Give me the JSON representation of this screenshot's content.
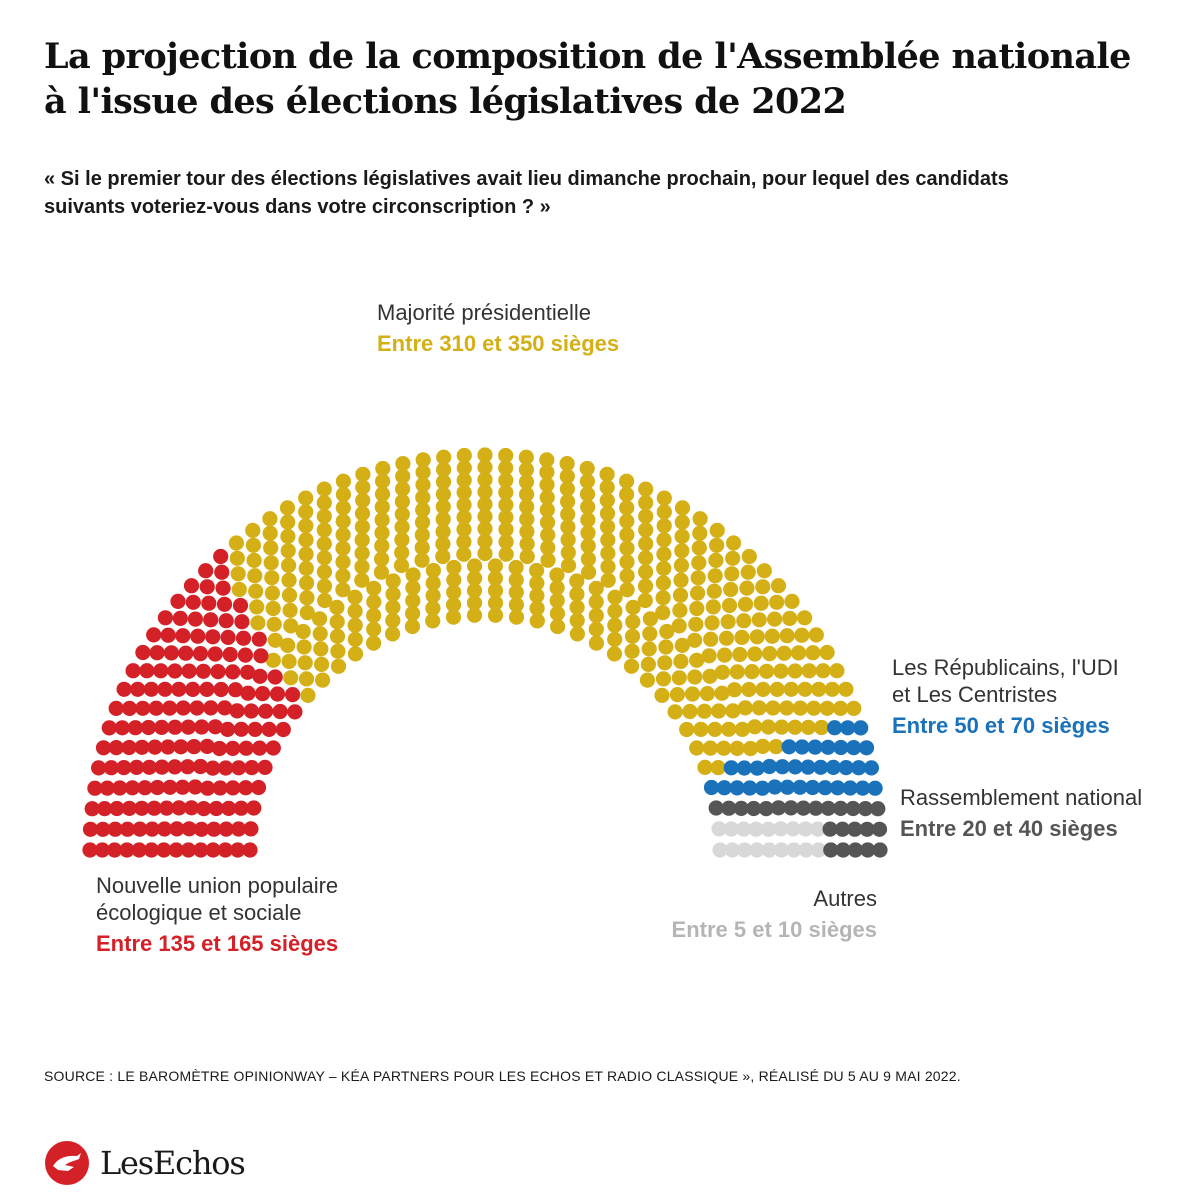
{
  "header": {
    "title_line1": "La projection de la composition de l'Assemblée nationale",
    "title_line2": "à l'issue des élections législatives de 2022",
    "subtitle_line1": "« Si le premier tour des élections législatives avait lieu dimanche prochain, pour lequel des candidats",
    "subtitle_line2": "suivants voteriez-vous dans votre circonscription ? »"
  },
  "chart_data": {
    "type": "parliament",
    "total_seats_approx": 577,
    "groups": [
      {
        "key": "nupes",
        "name_lines": [
          "Nouvelle union populaire",
          "écologique et sociale"
        ],
        "range_label": "Entre 135 et 165 sièges",
        "range": [
          135,
          165
        ],
        "color": "#d42027"
      },
      {
        "key": "majorite",
        "name_lines": [
          "Majorité présidentielle"
        ],
        "range_label": "Entre 310 et 350 sièges",
        "range": [
          310,
          350
        ],
        "color": "#d4b016"
      },
      {
        "key": "lr_udi",
        "name_lines": [
          "Les Républicains, l'UDI",
          "et Les Centristes"
        ],
        "range_label": "Entre 50 et 70 sièges",
        "range": [
          50,
          70
        ],
        "color": "#1a72bb"
      },
      {
        "key": "rn",
        "name_lines": [
          "Rassemblement national"
        ],
        "range_label": "Entre 20 et 40 sièges",
        "range": [
          20,
          40
        ],
        "color": "#555555"
      },
      {
        "key": "autres",
        "name_lines": [
          "Autres"
        ],
        "range_label": "Entre 5 et 10 sièges",
        "range": [
          5,
          10
        ],
        "color": "#d8d8d8"
      }
    ],
    "label_color": "#333333",
    "range_colors": {
      "autres": "#b5b5b5"
    }
  },
  "footer": {
    "source": "SOURCE : LE BAROMÈTRE OPINIONWAY – KÉA PARTNERS POUR LES ECHOS ET RADIO CLASSIQUE », RÉALISÉ DU 5 AU 9 MAI 2022.",
    "logo_text": "LesEchos",
    "logo_color": "#d42027"
  }
}
